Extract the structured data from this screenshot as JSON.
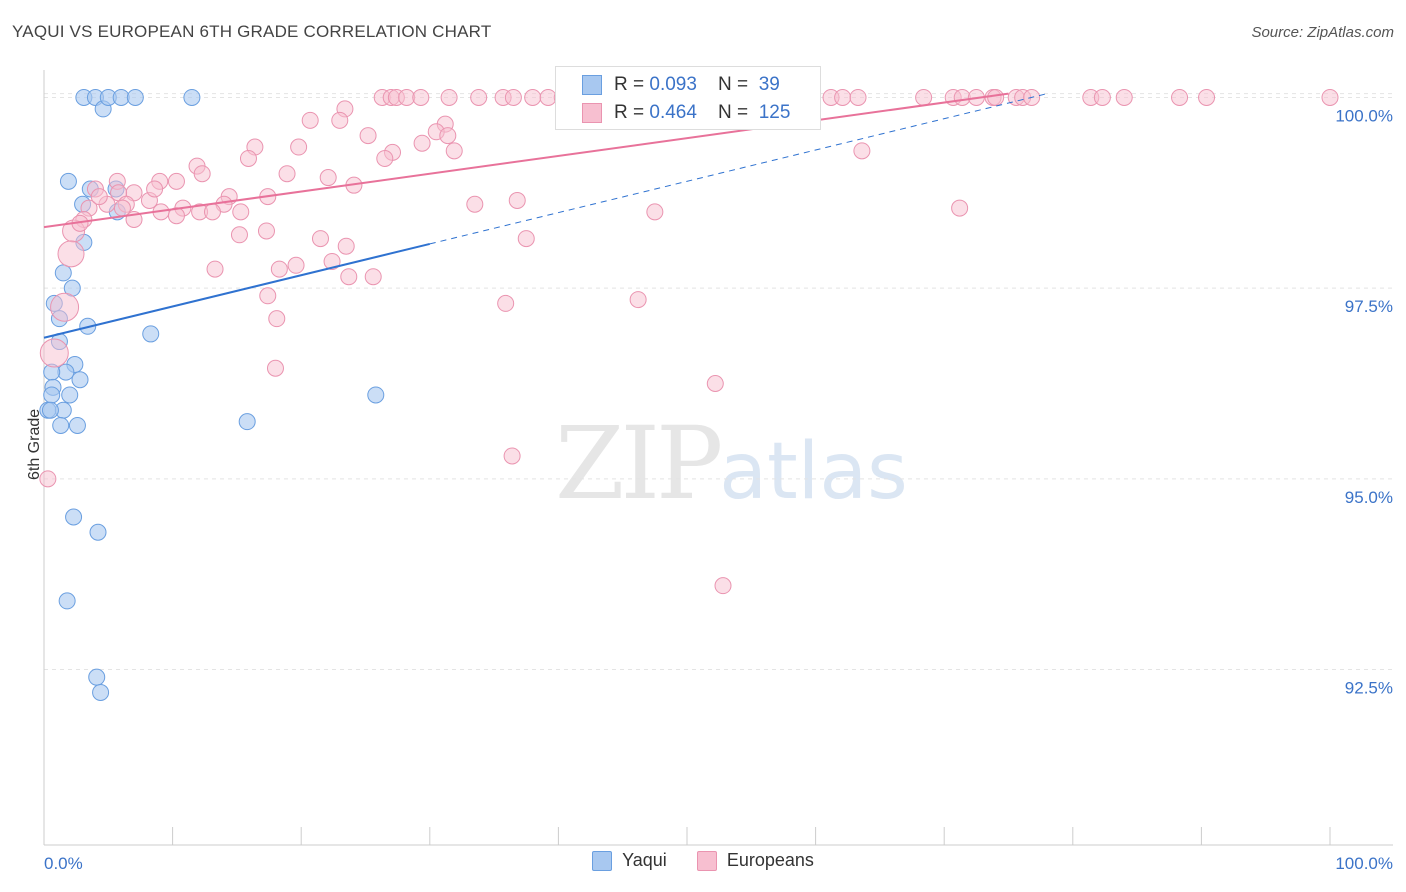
{
  "title": "YAQUI VS EUROPEAN 6TH GRADE CORRELATION CHART",
  "source": "Source: ZipAtlas.com",
  "watermark": {
    "zip": "ZIP",
    "atlas": "atlas"
  },
  "stats": {
    "yaqui": {
      "r_label": "R = ",
      "r": "0.093",
      "n_label": "N = ",
      "n": "39"
    },
    "europeans": {
      "r_label": "R = ",
      "r": "0.464",
      "n_label": "N = ",
      "n": "125"
    }
  },
  "legend": {
    "yaqui": "Yaqui",
    "europeans": "Europeans"
  },
  "colors": {
    "yaqui_fill": "#a8c8f0",
    "yaqui_stroke": "#6a9fe0",
    "yaqui_line": "#2f72d0",
    "eu_fill": "#f7bfd0",
    "eu_stroke": "#ea94b0",
    "eu_line": "#e8729a",
    "axis_text": "#3b73c8",
    "grid": "#e4e4e4"
  },
  "chart_data": {
    "type": "scatter",
    "title": "YAQUI VS EUROPEAN 6TH GRADE CORRELATION CHART",
    "xlabel": "",
    "ylabel": "6th Grade",
    "xlim": [
      0,
      100
    ],
    "ylim": [
      90.2,
      100.36
    ],
    "x_tick_labels": [
      "0.0%",
      "100.0%"
    ],
    "y_ticks": [
      92.5,
      95.0,
      97.5,
      100.0
    ],
    "y_tick_labels": [
      "92.5%",
      "95.0%",
      "97.5%",
      "100.0%"
    ],
    "series": [
      {
        "name": "Yaqui",
        "trend": {
          "x0": 0,
          "y0": 96.85,
          "x1": 30,
          "y1": 98.08,
          "dashed_to_x": 78,
          "dashed_to_y": 100.05
        },
        "points": [
          [
            3.1,
            100.0
          ],
          [
            4.0,
            100.0
          ],
          [
            4.6,
            99.85
          ],
          [
            5.0,
            100.0
          ],
          [
            6.0,
            100.0
          ],
          [
            7.1,
            100.0
          ],
          [
            11.5,
            100.0
          ],
          [
            1.9,
            98.9
          ],
          [
            3.6,
            98.8
          ],
          [
            5.6,
            98.8
          ],
          [
            3.0,
            98.6
          ],
          [
            5.7,
            98.5
          ],
          [
            3.1,
            98.1
          ],
          [
            1.5,
            97.7
          ],
          [
            2.2,
            97.5
          ],
          [
            0.8,
            97.3
          ],
          [
            1.2,
            97.1
          ],
          [
            3.4,
            97.0
          ],
          [
            8.3,
            96.9
          ],
          [
            1.2,
            96.8
          ],
          [
            2.4,
            96.5
          ],
          [
            1.7,
            96.4
          ],
          [
            2.8,
            96.3
          ],
          [
            0.6,
            96.4
          ],
          [
            0.7,
            96.2
          ],
          [
            0.6,
            96.1
          ],
          [
            2.0,
            96.1
          ],
          [
            0.3,
            95.9
          ],
          [
            1.5,
            95.9
          ],
          [
            25.8,
            96.1
          ],
          [
            1.3,
            95.7
          ],
          [
            2.6,
            95.7
          ],
          [
            15.8,
            95.75
          ],
          [
            2.3,
            94.5
          ],
          [
            4.2,
            94.3
          ],
          [
            1.8,
            93.4
          ],
          [
            4.1,
            92.4
          ],
          [
            4.4,
            92.2
          ],
          [
            0.5,
            95.9
          ]
        ]
      },
      {
        "name": "Europeans",
        "trend": {
          "x0": 0,
          "y0": 98.3,
          "x1": 75,
          "y1": 100.05
        },
        "points": [
          [
            26.3,
            100.0
          ],
          [
            27.0,
            100.0
          ],
          [
            27.4,
            100.0
          ],
          [
            28.2,
            100.0
          ],
          [
            29.3,
            100.0
          ],
          [
            31.5,
            100.0
          ],
          [
            33.8,
            100.0
          ],
          [
            35.7,
            100.0
          ],
          [
            36.5,
            100.0
          ],
          [
            38.0,
            100.0
          ],
          [
            39.2,
            100.0
          ],
          [
            40.3,
            100.0
          ],
          [
            41.1,
            100.0
          ],
          [
            41.8,
            100.0
          ],
          [
            42.7,
            100.0
          ],
          [
            43.4,
            100.0
          ],
          [
            44.3,
            100.0
          ],
          [
            45.3,
            100.0
          ],
          [
            46.5,
            100.0
          ],
          [
            47.5,
            100.0
          ],
          [
            48.4,
            100.0
          ],
          [
            49.5,
            100.0
          ],
          [
            50.5,
            100.0
          ],
          [
            51.5,
            100.0
          ],
          [
            52.4,
            100.0
          ],
          [
            53.3,
            100.0
          ],
          [
            54.3,
            100.0
          ],
          [
            55.4,
            100.0
          ],
          [
            56.3,
            100.0
          ],
          [
            57.5,
            100.0
          ],
          [
            58.5,
            100.0
          ],
          [
            59.6,
            100.0
          ],
          [
            61.2,
            100.0
          ],
          [
            62.1,
            100.0
          ],
          [
            63.3,
            100.0
          ],
          [
            68.4,
            100.0
          ],
          [
            70.7,
            100.0
          ],
          [
            71.4,
            100.0
          ],
          [
            72.5,
            100.0
          ],
          [
            73.8,
            100.0
          ],
          [
            75.6,
            100.0
          ],
          [
            76.1,
            100.0
          ],
          [
            76.8,
            100.0
          ],
          [
            81.4,
            100.0
          ],
          [
            82.3,
            100.0
          ],
          [
            84.0,
            100.0
          ],
          [
            88.3,
            100.0
          ],
          [
            90.4,
            100.0
          ],
          [
            100.0,
            100.0
          ],
          [
            74.0,
            100.0
          ],
          [
            58.9,
            100.0
          ],
          [
            23.4,
            99.85
          ],
          [
            20.7,
            99.7
          ],
          [
            23.0,
            99.7
          ],
          [
            31.2,
            99.65
          ],
          [
            30.5,
            99.55
          ],
          [
            31.4,
            99.5
          ],
          [
            29.4,
            99.4
          ],
          [
            16.4,
            99.35
          ],
          [
            19.8,
            99.35
          ],
          [
            27.1,
            99.28
          ],
          [
            31.9,
            99.3
          ],
          [
            26.5,
            99.2
          ],
          [
            15.9,
            99.2
          ],
          [
            63.6,
            99.3
          ],
          [
            11.9,
            99.1
          ],
          [
            12.3,
            99.0
          ],
          [
            18.9,
            99.0
          ],
          [
            22.1,
            98.95
          ],
          [
            9.0,
            98.9
          ],
          [
            10.3,
            98.9
          ],
          [
            5.7,
            98.9
          ],
          [
            24.1,
            98.85
          ],
          [
            4.0,
            98.8
          ],
          [
            7.0,
            98.75
          ],
          [
            5.8,
            98.75
          ],
          [
            8.2,
            98.65
          ],
          [
            14.4,
            98.7
          ],
          [
            17.4,
            98.7
          ],
          [
            14.0,
            98.6
          ],
          [
            3.5,
            98.55
          ],
          [
            4.9,
            98.6
          ],
          [
            6.4,
            98.6
          ],
          [
            10.8,
            98.55
          ],
          [
            12.1,
            98.5
          ],
          [
            13.1,
            98.5
          ],
          [
            15.3,
            98.5
          ],
          [
            33.5,
            98.6
          ],
          [
            36.8,
            98.65
          ],
          [
            9.1,
            98.5
          ],
          [
            10.3,
            98.45
          ],
          [
            7.0,
            98.4
          ],
          [
            3.1,
            98.4
          ],
          [
            47.5,
            98.5
          ],
          [
            71.2,
            98.55
          ],
          [
            2.3,
            98.25
          ],
          [
            15.2,
            98.2
          ],
          [
            17.3,
            98.25
          ],
          [
            21.5,
            98.15
          ],
          [
            23.5,
            98.05
          ],
          [
            37.5,
            98.15
          ],
          [
            2.1,
            97.95
          ],
          [
            22.4,
            97.85
          ],
          [
            18.3,
            97.75
          ],
          [
            19.6,
            97.8
          ],
          [
            13.3,
            97.75
          ],
          [
            23.7,
            97.65
          ],
          [
            25.6,
            97.65
          ],
          [
            17.4,
            97.4
          ],
          [
            35.9,
            97.3
          ],
          [
            46.2,
            97.35
          ],
          [
            1.6,
            97.25
          ],
          [
            18.1,
            97.1
          ],
          [
            18.0,
            96.45
          ],
          [
            0.8,
            96.65
          ],
          [
            52.2,
            96.25
          ],
          [
            36.4,
            95.3
          ],
          [
            52.8,
            93.6
          ],
          [
            0.3,
            95.0
          ],
          [
            4.3,
            98.7
          ],
          [
            6.1,
            98.55
          ],
          [
            2.8,
            98.35
          ],
          [
            8.6,
            98.8
          ],
          [
            25.2,
            99.5
          ]
        ]
      }
    ]
  }
}
